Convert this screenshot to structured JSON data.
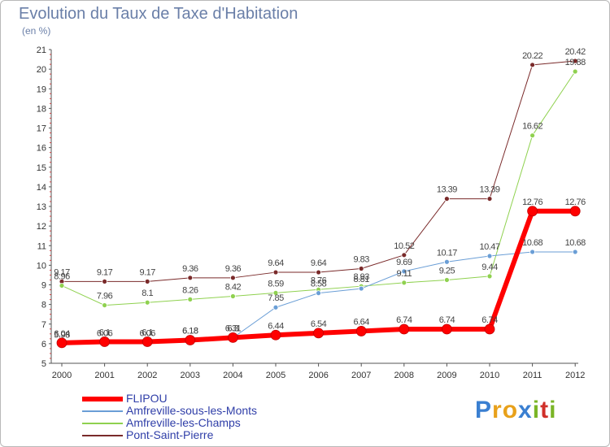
{
  "title": "Evolution du Taux de Taxe d'Habitation",
  "unit_label": "(en %)",
  "brand": {
    "letters": [
      {
        "ch": "P",
        "color": "#3a7fd1"
      },
      {
        "ch": "r",
        "color": "#e8a11b"
      },
      {
        "ch": "o",
        "color": "#e8a11b"
      },
      {
        "ch": "x",
        "color": "#3a7fd1"
      },
      {
        "ch": "i",
        "color": "#7ab526"
      },
      {
        "ch": "t",
        "color": "#d0302a"
      },
      {
        "ch": "i",
        "color": "#7ab526"
      }
    ]
  },
  "chart_data": {
    "type": "line",
    "title": "Evolution du Taux de Taxe d'Habitation",
    "ylabel": "(en %)",
    "xlabel": "",
    "x": [
      "2000",
      "2001",
      "2002",
      "2003",
      "2004",
      "2005",
      "2006",
      "2007",
      "2008",
      "2009",
      "2010",
      "2011",
      "2012"
    ],
    "ylim": [
      5,
      21
    ],
    "yticks": [
      5,
      6,
      7,
      8,
      9,
      10,
      11,
      12,
      13,
      14,
      15,
      16,
      17,
      18,
      19,
      20,
      21
    ],
    "grid": false,
    "legend_position": "bottom-left",
    "series": [
      {
        "name": "Pont-Saint-Pierre",
        "color": "#7a2a2a",
        "width": 1,
        "values": [
          9.17,
          9.17,
          9.17,
          9.36,
          9.36,
          9.64,
          9.64,
          9.83,
          10.52,
          13.39,
          13.39,
          20.22,
          20.42
        ],
        "labels": [
          "9.17",
          "9.17",
          "9.17",
          "9.36",
          "9.36",
          "9.64",
          "9.64",
          "9.83",
          "10.52",
          "13.39",
          "13.39",
          "20.22",
          "20.42"
        ]
      },
      {
        "name": "Amfreville-les-Champs",
        "color": "#8fd14f",
        "width": 1,
        "values": [
          8.96,
          7.96,
          8.1,
          8.26,
          8.42,
          8.59,
          8.76,
          8.93,
          9.11,
          9.25,
          9.44,
          16.62,
          19.88
        ],
        "labels": [
          "8.96",
          "7.96",
          "8.1",
          "8.26",
          "8.42",
          "8.59",
          "8.76",
          "8.93",
          "9.11",
          "9.25",
          "9.44",
          "16.62",
          "19.88"
        ]
      },
      {
        "name": "Amfreville-sous-les-Monts",
        "color": "#6a9ed6",
        "width": 1,
        "values": [
          5.98,
          6.06,
          6.06,
          6.18,
          6.3,
          7.85,
          8.58,
          8.81,
          9.69,
          10.17,
          10.47,
          10.68,
          10.68
        ],
        "labels": [
          "5.98",
          "6.06",
          "6.06",
          "6.18",
          "6.3",
          "7.85",
          "8.58",
          "8.81",
          "9.69",
          "10.17",
          "10.47",
          "10.68",
          "10.68"
        ]
      },
      {
        "name": "FLIPOU",
        "color": "#ff0000",
        "width": 6,
        "values": [
          6.04,
          6.1,
          6.1,
          6.18,
          6.31,
          6.44,
          6.54,
          6.64,
          6.74,
          6.74,
          6.74,
          12.76,
          12.76
        ],
        "labels": [
          "6.04",
          "6.1",
          "6.1",
          "6.18",
          "6.31",
          "6.44",
          "6.54",
          "6.64",
          "6.74",
          "6.74",
          "6.74",
          "12.76",
          "12.76"
        ]
      }
    ],
    "legend_order": [
      "FLIPOU",
      "Amfreville-sous-les-Monts",
      "Amfreville-les-Champs",
      "Pont-Saint-Pierre"
    ]
  }
}
